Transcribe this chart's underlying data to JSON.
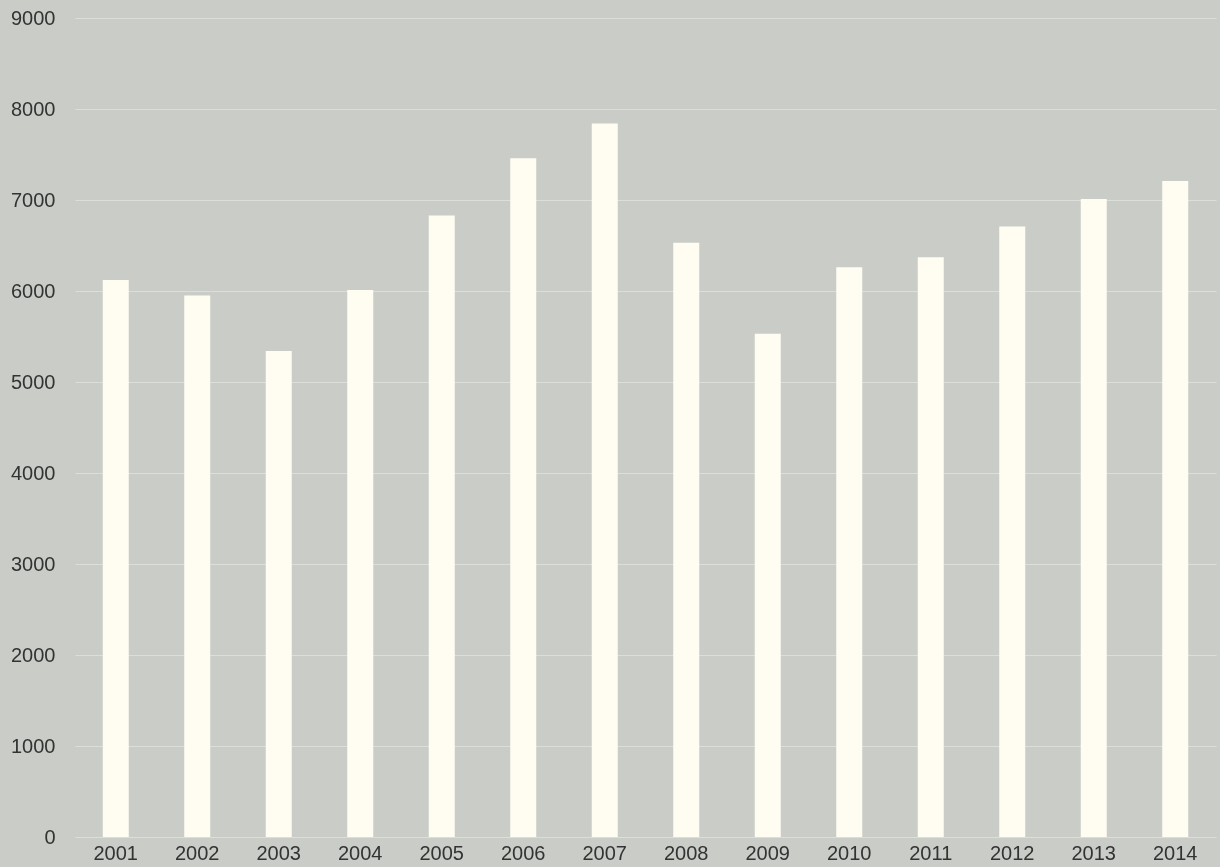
{
  "chart_data": {
    "type": "bar",
    "categories": [
      "2001",
      "2002",
      "2003",
      "2004",
      "2005",
      "2006",
      "2007",
      "2008",
      "2009",
      "2010",
      "2011",
      "2012",
      "2013",
      "2014"
    ],
    "values": [
      6120,
      5950,
      5340,
      6010,
      6830,
      7460,
      7840,
      6530,
      5530,
      6260,
      6370,
      6710,
      7010,
      7210
    ],
    "color": "#fffdf2",
    "ylim": [
      0,
      9000
    ],
    "yticks": [
      0,
      1000,
      2000,
      3000,
      4000,
      5000,
      6000,
      7000,
      8000,
      9000
    ],
    "grid": "y"
  }
}
